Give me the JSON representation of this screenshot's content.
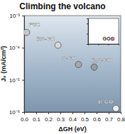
{
  "chart_data": [
    {
      "type": "scatter",
      "title": "Climbing the volcano",
      "x_label": "ΔGH (eV)",
      "y_label": "J₀ (mA/cm²)",
      "log": "y",
      "marker": "circle",
      "xlim": [
        0,
        0.8
      ],
      "xticks": [
        {
          "value": 0,
          "label": "0.0"
        },
        0.1,
        0.2,
        0.3,
        0.4,
        0.5,
        0.6,
        0.7,
        0.8
      ],
      "ylim": [
        1e-06,
        0.001
      ],
      "yticks": [
        {
          "value": 1e-06,
          "label": "10⁻⁶"
        },
        {
          "value": 1e-05,
          "label": "10⁻⁵"
        },
        {
          "value": 0.0001,
          "label": "10⁻⁴"
        },
        {
          "value": 0.001,
          "label": "10⁻³"
        }
      ],
      "series": [
        {
          "name": "Pt/C",
          "color": "#c8c8c8",
          "x": [
            0.02
          ],
          "values": [
            0.0003
          ]
        },
        {
          "name": "BN-GO",
          "color": "#d8d8d8",
          "x": [
            0.28
          ],
          "values": [
            0.00012
          ]
        },
        {
          "name": "N-GO",
          "color": "#a8a8a8",
          "x": [
            0.45
          ],
          "values": [
            3e-05
          ]
        },
        {
          "name": "B,N-GO",
          "color": "#9a9a9a",
          "x": [
            0.58
          ],
          "values": [
            2.5e-05
          ]
        },
        {
          "name": "B-GO",
          "color": "#eeeeee",
          "x": [
            0.76
          ],
          "values": [
            1.3e-06
          ]
        }
      ]
    },
    {
      "type": "scatter",
      "log": "y",
      "marker": "circle",
      "tick_labels": false,
      "xlim": [
        0,
        1.5
      ],
      "xticks": [
        0,
        0.5,
        1,
        1.5
      ],
      "ylim": [
        1e-08,
        0.001
      ],
      "yticks": [
        1e-08,
        1e-06,
        0.0001
      ],
      "series": [
        {
          "name": "GO",
          "color": "#e07090",
          "x": [
            1.2
          ],
          "values": [
            1e-07
          ]
        }
      ]
    }
  ]
}
